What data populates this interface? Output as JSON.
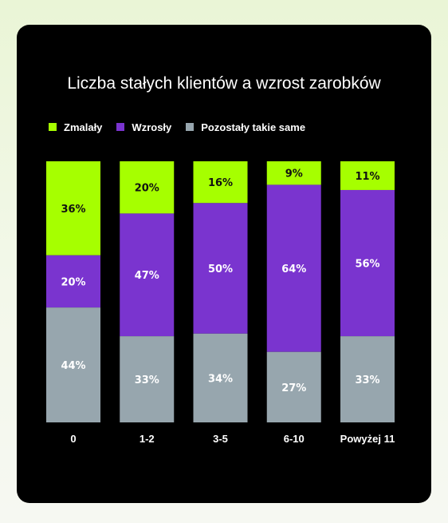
{
  "chart_data": {
    "type": "bar",
    "stacked": true,
    "orientation": "vertical",
    "title": "Liczba stałych klientów a wzrost zarobków",
    "categories": [
      "0",
      "1-2",
      "3-5",
      "6-10",
      "Powyżej 11"
    ],
    "series": [
      {
        "name": "Zmalały",
        "color": "#a6ff00",
        "label_color": "#111111",
        "values": [
          36,
          20,
          16,
          9,
          11
        ]
      },
      {
        "name": "Wzrosły",
        "color": "#7a34cf",
        "label_color": "#ffffff",
        "values": [
          20,
          47,
          50,
          64,
          56
        ]
      },
      {
        "name": "Pozostały takie same",
        "color": "#97a6ae",
        "label_color": "#ffffff",
        "values": [
          44,
          33,
          34,
          27,
          33
        ]
      }
    ],
    "value_suffix": "%",
    "legend_position": "top-left",
    "grid": false,
    "ylim": [
      0,
      100
    ]
  },
  "colors": {
    "background": "#000000",
    "text": "#ffffff"
  }
}
